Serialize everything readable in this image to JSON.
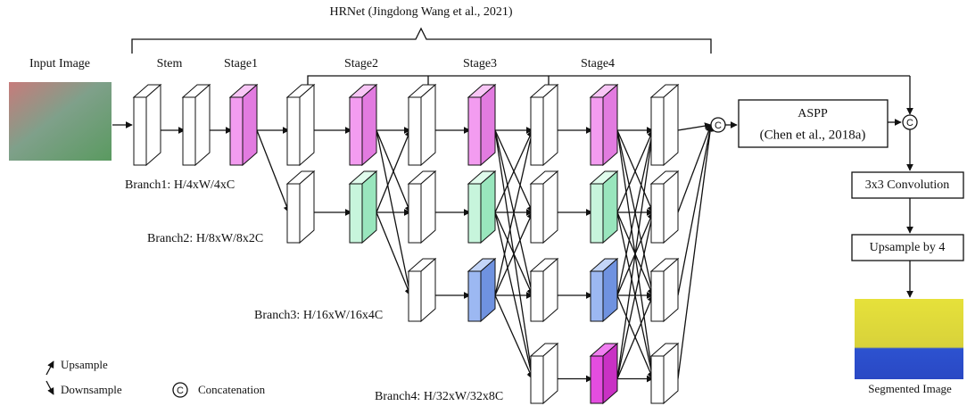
{
  "header": {
    "title": "HRNet (Jingdong Wang et al., 2021)"
  },
  "input_label": "Input Image",
  "output_label": "Segmented Image",
  "stem_label": "Stem",
  "stages": [
    "Stage1",
    "Stage2",
    "Stage3",
    "Stage4"
  ],
  "branches": [
    "Branch1: H/4xW/4xC",
    "Branch2: H/8xW/8x2C",
    "Branch3: H/16xW/16x4C",
    "Branch4: H/32xW/32x8C"
  ],
  "aspp": {
    "name": "ASPP",
    "citation": "(Chen et al., 2018a)"
  },
  "conv_box": "3x3 Convolution",
  "upsample_box": "Upsample by 4",
  "concat_symbol": "C",
  "legend": {
    "upsample": "Upsample",
    "downsample": "Downsample",
    "concatenation": "Concatenation"
  }
}
